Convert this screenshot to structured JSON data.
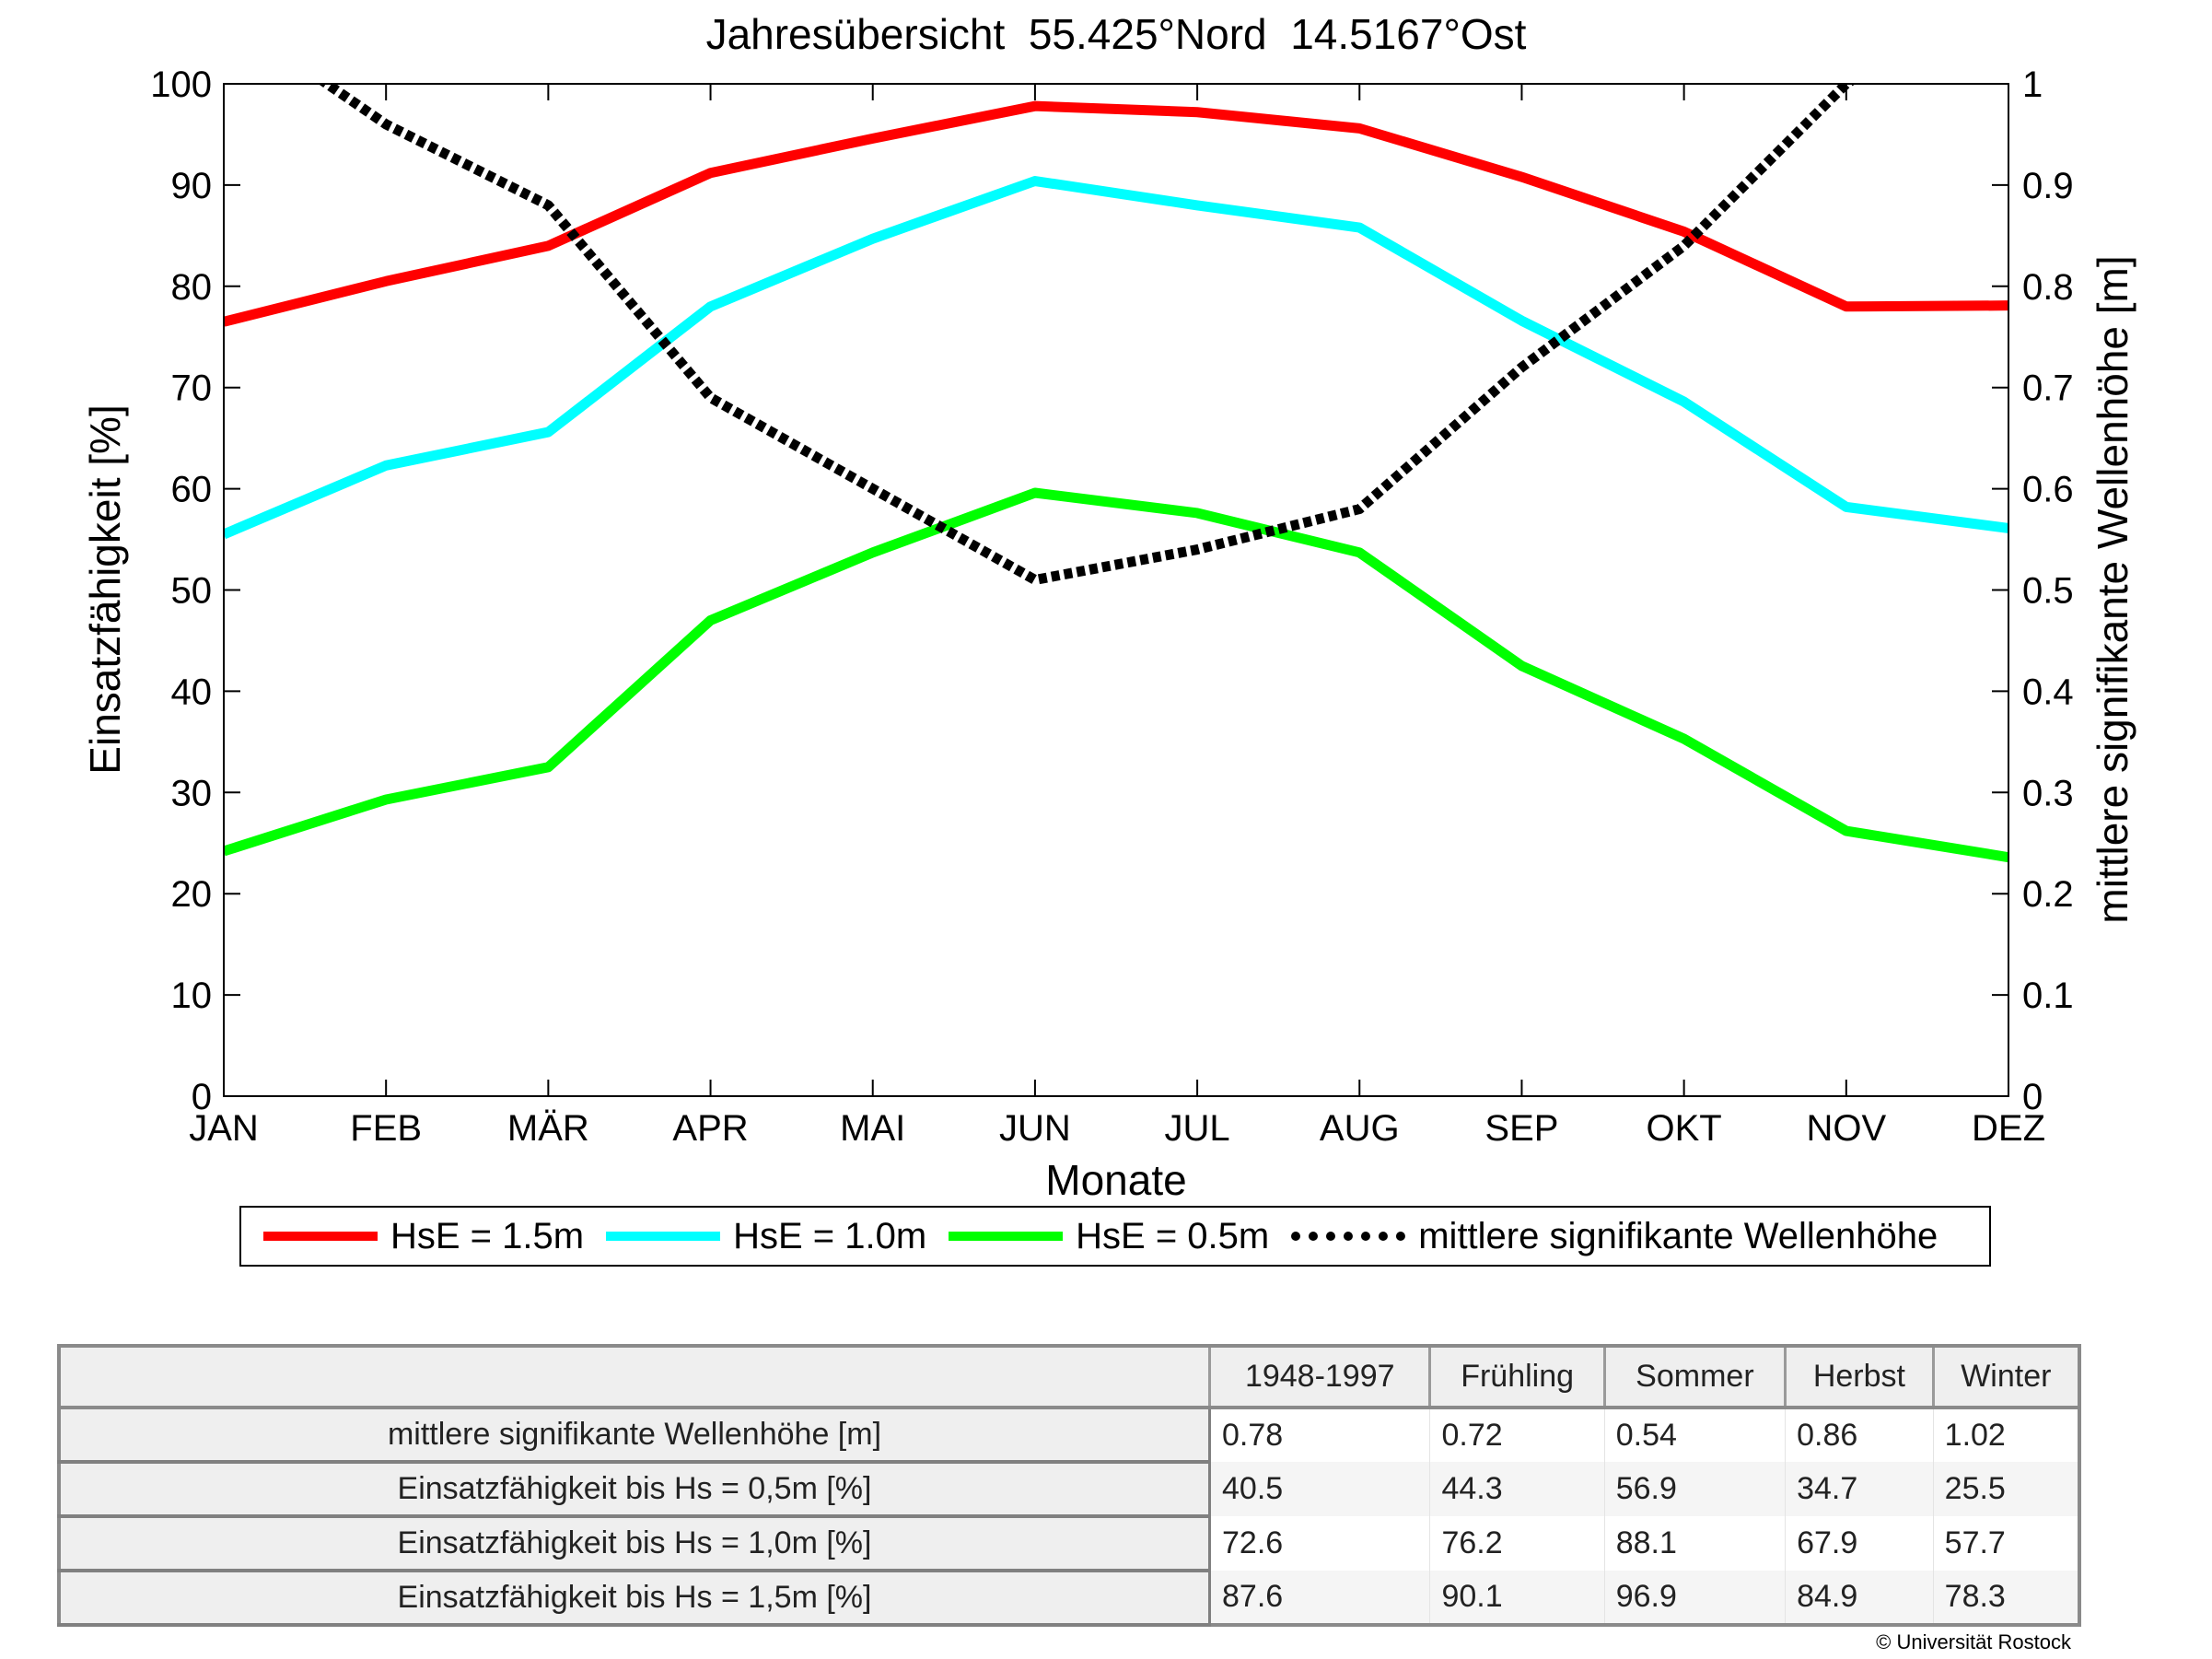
{
  "chart_data": {
    "type": "line",
    "title": "Jahresübersicht  55.425°Nord  14.5167°Ost",
    "xlabel": "Monate",
    "ylabel": "Einsatzfähigkeit [%]",
    "y2label": "mittlere signifikante Wellenhöhe [m]",
    "categories": [
      "JAN",
      "FEB",
      "MÄR",
      "APR",
      "MAI",
      "JUN",
      "JUL",
      "AUG",
      "SEP",
      "OKT",
      "NOV",
      "DEZ"
    ],
    "ylim": [
      0,
      100
    ],
    "y2lim": [
      0,
      1
    ],
    "yticks": [
      "0",
      "10",
      "20",
      "30",
      "40",
      "50",
      "60",
      "70",
      "80",
      "90",
      "100"
    ],
    "y2ticks": [
      "0",
      "0.1",
      "0.2",
      "0.3",
      "0.4",
      "0.5",
      "0.6",
      "0.7",
      "0.8",
      "0.9",
      "1"
    ],
    "grid": false,
    "legend_position": "bottom",
    "series": [
      {
        "name": "HsE = 1.5m",
        "axis": "left",
        "color": "#ff0000",
        "style": "solid",
        "values": [
          76.5,
          80.5,
          84.0,
          91.2,
          94.6,
          97.8,
          97.2,
          95.6,
          90.8,
          85.4,
          78.0,
          78.1
        ]
      },
      {
        "name": "HsE = 1.0m",
        "axis": "left",
        "color": "#00ffff",
        "style": "solid",
        "values": [
          55.5,
          62.3,
          65.6,
          78.0,
          84.7,
          90.4,
          88.0,
          85.8,
          76.6,
          68.6,
          58.2,
          56.1
        ]
      },
      {
        "name": "HsE = 0.5m",
        "axis": "left",
        "color": "#00ff00",
        "style": "solid",
        "values": [
          24.2,
          29.3,
          32.5,
          47.0,
          53.7,
          59.6,
          57.6,
          53.7,
          42.5,
          35.3,
          26.2,
          23.6
        ]
      },
      {
        "name": "mittlere signifikante Wellenhöhe",
        "axis": "right",
        "color": "#000000",
        "style": "dotted",
        "values": [
          1.07,
          0.96,
          0.88,
          0.69,
          0.6,
          0.51,
          0.54,
          0.58,
          0.72,
          0.84,
          1.0,
          1.1
        ]
      }
    ]
  },
  "table": {
    "headers": [
      "",
      "1948-1997",
      "Frühling",
      "Sommer",
      "Herbst",
      "Winter"
    ],
    "rows": [
      {
        "label": "mittlere signifikante Wellenhöhe [m]",
        "values": [
          "0.78",
          "0.72",
          "0.54",
          "0.86",
          "1.02"
        ]
      },
      {
        "label": "Einsatzfähigkeit bis Hs = 0,5m [%]",
        "values": [
          "40.5",
          "44.3",
          "56.9",
          "34.7",
          "25.5"
        ]
      },
      {
        "label": "Einsatzfähigkeit bis Hs = 1,0m [%]",
        "values": [
          "72.6",
          "76.2",
          "88.1",
          "67.9",
          "57.7"
        ]
      },
      {
        "label": "Einsatzfähigkeit bis Hs = 1,5m [%]",
        "values": [
          "87.6",
          "90.1",
          "96.9",
          "84.9",
          "78.3"
        ]
      }
    ]
  },
  "copyright": "© Universität Rostock"
}
